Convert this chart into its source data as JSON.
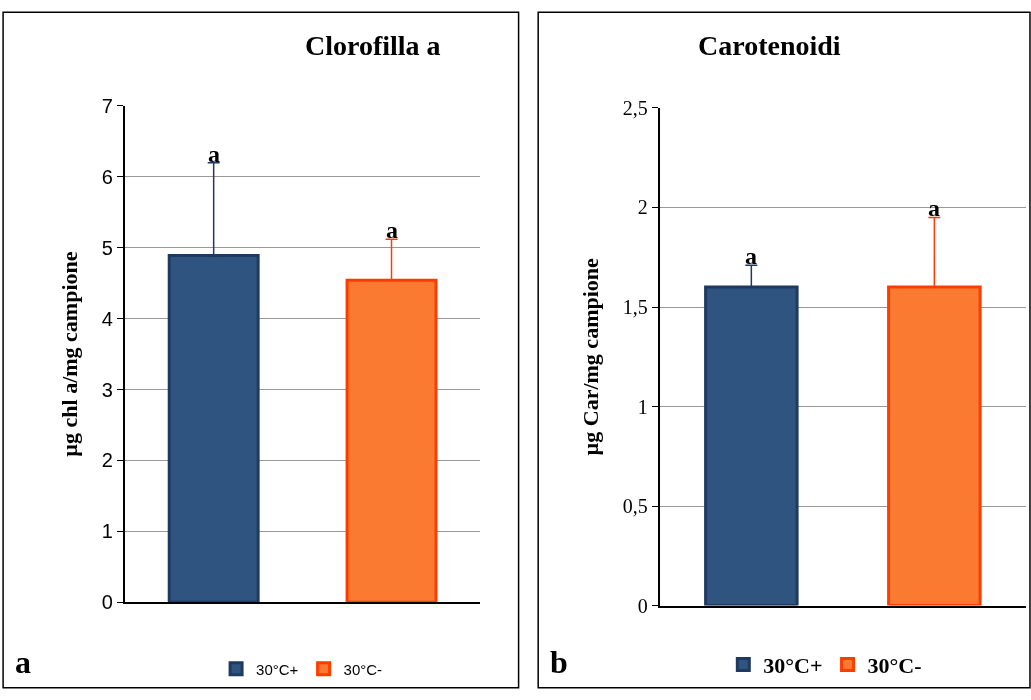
{
  "chart_data": [
    {
      "type": "bar",
      "title": "Clorofilla a",
      "ylabel": "µg chl a/mg campione",
      "categories": [
        null,
        null
      ],
      "series": [
        {
          "name": "30°C+",
          "color": "#2f5480",
          "values": [
            4.89,
            null
          ],
          "errors": [
            [
              4.89,
              6.2
            ],
            null
          ]
        },
        {
          "name": "30°C-",
          "color": "#f97a30",
          "values": [
            null,
            4.54
          ],
          "errors": [
            null,
            [
              4.54,
              5.12
            ]
          ]
        }
      ],
      "ylim": [
        0,
        7
      ],
      "yticks": [
        0,
        1,
        2,
        3,
        4,
        5,
        6,
        7
      ],
      "grid": "y",
      "legend": "bottom",
      "annotations": [
        {
          "text": "a",
          "y": 6.2
        },
        {
          "text": "a",
          "y": 5.12
        },
        "a"
      ]
    },
    {
      "type": "bar",
      "title": "Carotenoidi",
      "ylabel": "µg Car/mg campione",
      "categories": [
        null,
        null
      ],
      "series": [
        {
          "name": "30°C+",
          "color": "#2f5480",
          "values": [
            1.6,
            null
          ],
          "errors": [
            [
              1.6,
              1.71
            ],
            null
          ]
        },
        {
          "name": "30°C-",
          "color": "#f97a30",
          "values": [
            null,
            1.6
          ],
          "errors": [
            null,
            [
              1.6,
              1.95
            ]
          ]
        }
      ],
      "ylim": [
        0,
        2.5
      ],
      "yticks": [
        0,
        {
          "value": 0.5,
          "label": "0,5"
        },
        1,
        {
          "value": 1.5,
          "label": "1,5"
        },
        2,
        {
          "value": 2.5,
          "label": "2,5"
        }
      ],
      "grid": "y",
      "legend": "bottom",
      "annotations": [
        {
          "text": "a",
          "y": 1.71
        },
        {
          "text": "a",
          "y": 1.95
        },
        "b"
      ]
    }
  ]
}
